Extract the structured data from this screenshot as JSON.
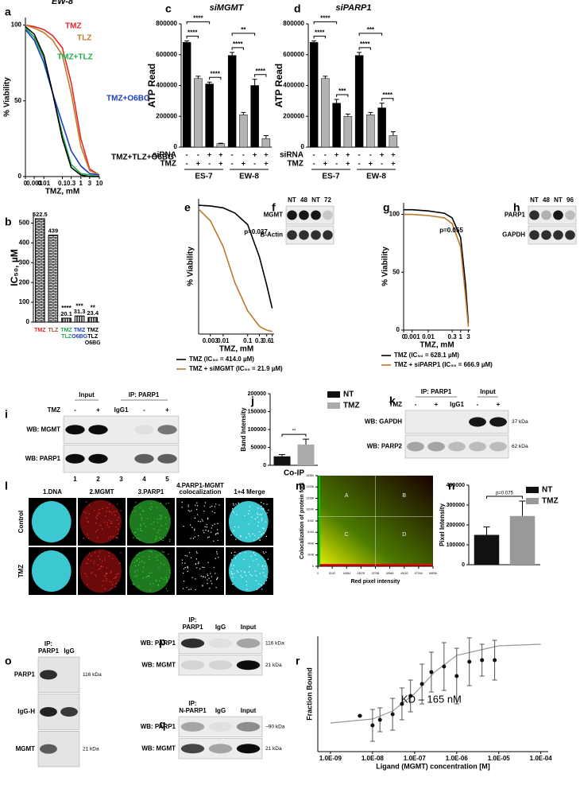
{
  "panels": [
    {
      "letter": "a",
      "type": "line",
      "title": "EW-8",
      "xlabel": "TMZ, mM",
      "ylabel": "% Viability",
      "log_x": true,
      "xlim": [
        0.001,
        10
      ],
      "ylim": [
        0,
        105
      ],
      "xticks": [
        {
          "value": 0.001,
          "label": "0"
        },
        0.003,
        0.01,
        0.1,
        0.3,
        1,
        3,
        10
      ],
      "yticks": [
        0,
        50,
        100
      ],
      "x": [
        0.001,
        0.003,
        0.01,
        0.03,
        0.1,
        0.3,
        1,
        3,
        10
      ],
      "legend": "inline",
      "series": [
        {
          "name": "TMZ",
          "color": "#e8262a",
          "values": [
            100,
            99,
            97,
            93,
            85,
            62,
            25,
            5,
            1
          ]
        },
        {
          "name": "TLZ",
          "color": "#c07a2a",
          "values": [
            100,
            98,
            95,
            90,
            80,
            55,
            20,
            4,
            1
          ]
        },
        {
          "name": "TMZ+TLZ",
          "color": "#1fae4a",
          "values": [
            98,
            92,
            78,
            55,
            28,
            8,
            2,
            1,
            0
          ]
        },
        {
          "name": "TMZ+O6BG",
          "color": "#1b3fbf",
          "values": [
            97,
            90,
            75,
            55,
            35,
            17,
            7,
            2,
            1
          ]
        },
        {
          "name": "TMZ+TLZ+O6BG",
          "color": "#000000",
          "values": [
            99,
            94,
            80,
            55,
            25,
            6,
            1,
            0,
            0
          ]
        }
      ]
    },
    {
      "letter": "b",
      "type": "bar",
      "ylabel": "IC₅₀, µM",
      "ylim": [
        0,
        550
      ],
      "yticks": [
        0,
        100,
        200,
        300,
        400,
        500
      ],
      "categories": [
        [
          "TMZ"
        ],
        [
          "TLZ"
        ],
        [
          "TMZ",
          "TLZ"
        ],
        [
          "TMZ",
          "O6BG"
        ],
        [
          "TMZ",
          "TLZ",
          "O6BG"
        ]
      ],
      "colors": [
        "#e8262a",
        "#a0522d",
        "#1fae4a",
        "#1b3fbf",
        "#000000"
      ],
      "values": [
        522.5,
        439,
        20.1,
        31.3,
        23.4
      ],
      "significance": [
        null,
        null,
        "****",
        "***",
        "**"
      ]
    },
    {
      "letter": "c",
      "type": "grouped",
      "title": "siMGMT",
      "ylabel": "ATP Read",
      "ylim": [
        0,
        800000
      ],
      "yticks": [
        0,
        200000,
        400000,
        600000,
        800000
      ],
      "bar_colors": [
        "#000000",
        "#b3b3b3"
      ],
      "values": [
        680000,
        445000,
        410000,
        22000,
        595000,
        210000,
        400000,
        55000
      ],
      "errors": [
        10000,
        15000,
        12000,
        3000,
        20000,
        15000,
        40000,
        20000
      ],
      "table": [
        {
          "label": "siRNA",
          "cells": [
            "-",
            "-",
            "+",
            "+",
            "-",
            "-",
            "+",
            "+"
          ]
        },
        {
          "label": "TMZ",
          "cells": [
            "-",
            "+",
            "-",
            "+",
            "-",
            "+",
            "-",
            "+"
          ]
        }
      ],
      "groups": [
        "ES-7",
        "EW-8"
      ],
      "significance": [
        "****",
        "****",
        "****",
        "**",
        "****",
        "****"
      ]
    },
    {
      "letter": "d",
      "type": "grouped",
      "title": "siPARP1",
      "ylabel": "ATP Read",
      "ylim": [
        0,
        800000
      ],
      "yticks": [
        0,
        200000,
        400000,
        600000,
        800000
      ],
      "bar_colors": [
        "#000000",
        "#b3b3b3"
      ],
      "values": [
        680000,
        445000,
        285000,
        200000,
        595000,
        210000,
        255000,
        75000
      ],
      "errors": [
        10000,
        15000,
        25000,
        15000,
        20000,
        15000,
        30000,
        25000
      ],
      "table": [
        {
          "label": "siRNA",
          "cells": [
            "-",
            "-",
            "+",
            "+",
            "-",
            "-",
            "+",
            "+"
          ]
        },
        {
          "label": "TMZ",
          "cells": [
            "-",
            "+",
            "-",
            "+",
            "-",
            "+",
            "-",
            "+"
          ]
        }
      ],
      "groups": [
        "ES-7",
        "EW-8"
      ],
      "significance": [
        "****",
        "****",
        "***",
        "***",
        "****",
        "****"
      ]
    },
    {
      "letter": "e",
      "type": "line",
      "xlabel": "TMZ, mM",
      "ylabel": "% Viability",
      "log_x": true,
      "xlim": [
        0.001,
        1.2
      ],
      "ylim": [
        0,
        105
      ],
      "xticks": [
        0.003,
        0.01,
        0.1,
        0.3,
        0.6,
        1
      ],
      "x": [
        0.001,
        0.003,
        0.01,
        0.03,
        0.1,
        0.3,
        0.6,
        1
      ],
      "legend": "below",
      "annotation": "p=0.037",
      "series": [
        {
          "name": "TMZ (IC₅₀ = 414.0 µM)",
          "color": "#000000",
          "values": [
            100,
            99.5,
            98,
            94,
            85,
            60,
            38,
            20
          ]
        },
        {
          "name": "TMZ + siMGMT (IC₅₀ = 21.9 µM)",
          "color": "#b8792a",
          "values": [
            97,
            88,
            68,
            40,
            18,
            6,
            3,
            2
          ]
        }
      ]
    },
    {
      "letter": "f",
      "type": "blot",
      "lanes": [
        "NT",
        "48",
        "NT",
        "72"
      ],
      "rows": [
        "MGMT",
        "B-Actin"
      ]
    },
    {
      "letter": "g",
      "type": "line",
      "xlabel": "TMZ, mM",
      "ylabel": "% Viability",
      "log_x": true,
      "xlim": [
        0.0003,
        4
      ],
      "ylim": [
        0,
        110
      ],
      "xticks": [
        {
          "value": 0.0003,
          "label": "0"
        },
        0.001,
        0.01,
        0.3,
        1,
        3
      ],
      "yticks": [
        0,
        50,
        100
      ],
      "x": [
        0.0003,
        0.001,
        0.01,
        0.1,
        0.3,
        1,
        2,
        3
      ],
      "legend": "below",
      "annotation": "p=0.055",
      "series": [
        {
          "name": "TMZ (IC₅₀ = 628.1 µM)",
          "color": "#000000",
          "values": [
            104,
            104,
            103,
            101,
            97,
            80,
            40,
            6
          ]
        },
        {
          "name": "TMZ + siPARP1 (IC₅₀ = 666.9 µM)",
          "color": "#b8792a",
          "values": [
            100,
            100,
            99,
            97,
            92,
            72,
            30,
            3
          ]
        }
      ]
    },
    {
      "letter": "h",
      "type": "blot",
      "lanes": [
        "NT",
        "48",
        "NT",
        "96"
      ],
      "rows": [
        "PARP1",
        "GAPDH"
      ]
    },
    {
      "letter": "i",
      "type": "blot",
      "headers": [
        "Input",
        "IP: PARP1"
      ],
      "lane_label": "TMZ",
      "lanes": [
        "-",
        "+",
        "IgG1",
        "-",
        "+"
      ],
      "rows": [
        "WB: MGMT",
        "WB: PARP1"
      ],
      "lane_numbers": [
        1,
        2,
        3,
        4,
        5
      ]
    },
    {
      "letter": "j",
      "type": "legend-bar",
      "ylabel": "Band Intensity",
      "ylim": [
        0,
        200000
      ],
      "yticks": [
        0,
        50000,
        100000,
        150000,
        200000
      ],
      "categories": [
        "Co-IP"
      ],
      "significance": "**",
      "series": [
        {
          "name": "NT",
          "color": "#111111",
          "values": [
            25000
          ],
          "errors": [
            5000
          ]
        },
        {
          "name": "TMZ",
          "color": "#aaaaaa",
          "values": [
            58000
          ],
          "errors": [
            15000
          ]
        }
      ]
    },
    {
      "letter": "k",
      "type": "blot",
      "headers": [
        "IP: PARP1",
        "Input"
      ],
      "lane_label": "TMZ",
      "lanes": [
        "-",
        "+",
        "IgG1",
        "-",
        "+"
      ],
      "rows": [
        "WB: GAPDH",
        "WB: PARP2"
      ],
      "markers": [
        "37 kDa",
        "62 kDa"
      ]
    },
    {
      "letter": "l",
      "type": "micrograph",
      "columns": [
        [
          "1.DNA"
        ],
        [
          "2.MGMT"
        ],
        [
          "3.PARP1"
        ],
        [
          "4.PARP1-MGMT",
          "colocalization"
        ],
        [
          "1+4 Merge"
        ]
      ],
      "rows": [
        "Control",
        "TMZ"
      ]
    },
    {
      "letter": "m",
      "type": "heatmap",
      "ylabel": "Colocalization of protein foci",
      "xlabel": "Red pixel intensity",
      "xlim": [
        0,
        65536
      ],
      "ylim": [
        0,
        16384
      ],
      "xticks": [
        0,
        8192,
        16384,
        24576,
        32768,
        40960,
        49152,
        57344,
        65536
      ],
      "yticks": [
        0,
        2048,
        4096,
        6144,
        8192,
        10240,
        12288,
        14336,
        16384
      ],
      "quadrants": [
        "A",
        "B",
        "C",
        "D"
      ]
    },
    {
      "letter": "n",
      "type": "legend-bar",
      "ylabel": "Pixel Intensity",
      "ylim": [
        0,
        400000
      ],
      "yticks": [
        0,
        100000,
        200000,
        300000,
        400000
      ],
      "significance": "p=0.075",
      "series": [
        {
          "name": "NT",
          "color": "#111111",
          "values": [
            150000
          ],
          "errors": [
            40000
          ]
        },
        {
          "name": "TMZ",
          "color": "#999999",
          "values": [
            245000
          ],
          "errors": [
            75000
          ]
        }
      ]
    },
    {
      "letter": "o",
      "type": "blot",
      "lanes": [
        [
          "IP:",
          "PARP1"
        ],
        "IgG"
      ],
      "rows": [
        "PARP1",
        "IgG-H",
        "MGMT"
      ],
      "markers": [
        "116 kDa",
        "21 kDa"
      ]
    },
    {
      "letter": "p",
      "type": "blot",
      "lanes": [
        [
          "IP:",
          "PARP1"
        ],
        "IgG",
        "Input"
      ],
      "rows": [
        "WB: PARP1",
        "WB: MGMT"
      ],
      "markers": [
        "116 kDa",
        "21 kDa"
      ]
    },
    {
      "letter": "q",
      "type": "blot",
      "lanes": [
        [
          "IP:",
          "N-PARP1"
        ],
        "IgG",
        "Input"
      ],
      "rows": [
        "WB: PARP1",
        "WB: MGMT"
      ],
      "markers": [
        "~90 kDa",
        "21 kDa"
      ]
    },
    {
      "letter": "r",
      "type": "scatter",
      "ylabel": "Fraction Bound",
      "xlabel": "Ligand (MGMT) concentration [M]",
      "log_x": true,
      "xlim": [
        5e-10,
        0.00015
      ],
      "ylim": [
        -0.35,
        1.1
      ],
      "xticks": [
        {
          "value": 1e-09,
          "label": "1.0E-09"
        },
        {
          "value": 1e-08,
          "label": "1.0E-08"
        },
        {
          "value": 1e-07,
          "label": "1.0E-07"
        },
        {
          "value": 1e-06,
          "label": "1.0E-06"
        },
        {
          "value": 1e-05,
          "label": "1.0E-05"
        },
        {
          "value": 0.0001,
          "label": "1.0E-04"
        }
      ],
      "annotation": "KD – 165 nM",
      "x": [
        5e-09,
        1e-08,
        1.5e-08,
        3e-08,
        5e-08,
        8e-08,
        1.5e-07,
        2.5e-07,
        5e-07,
        1e-06,
        2e-06,
        4e-06,
        8e-06
      ],
      "values": [
        0.1,
        -0.02,
        0.05,
        0.12,
        0.25,
        0.35,
        0.5,
        0.65,
        0.72,
        0.6,
        0.78,
        0.8,
        0.8
      ],
      "errors": [
        0,
        0.2,
        0.15,
        0.2,
        0.2,
        0.2,
        0.25,
        0.25,
        0.3,
        0.35,
        0.3,
        0.2,
        0.25
      ],
      "fit": {
        "x": [
          1e-09,
          1e-08,
          3e-08,
          1e-07,
          3e-07,
          1e-06,
          1e-05,
          0.0001
        ],
        "values": [
          0.01,
          0.06,
          0.16,
          0.38,
          0.65,
          0.86,
          0.98,
          1.0
        ]
      }
    }
  ]
}
